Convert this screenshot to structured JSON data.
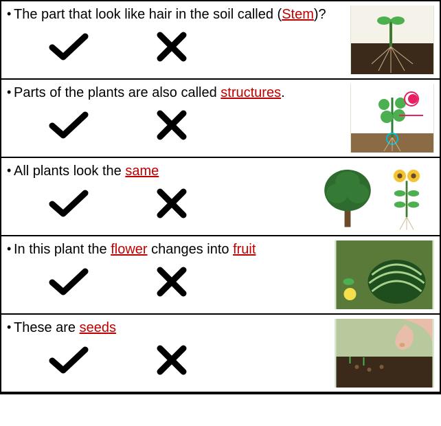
{
  "highlight_color": "#c00000",
  "text_color": "#000000",
  "mark_color": "#000000",
  "questions": [
    {
      "pre": "The part that look like hair in the soil called (",
      "keyword": "Stem",
      "post": ")?",
      "image": "seedling-soil"
    },
    {
      "pre": "Parts of the plants are also called ",
      "keyword": "structures",
      "post": ".",
      "image": "plant-parts"
    },
    {
      "pre": "All plants look the ",
      "keyword": "same",
      "post": "",
      "image": "tree-and-sunflower"
    },
    {
      "pre": "In this plant the ",
      "keyword": "flower",
      "mid": " changes into ",
      "keyword2": "fruit",
      "post": "",
      "image": "watermelon"
    },
    {
      "pre": "These are ",
      "keyword": "seeds",
      "post": "",
      "image": "hand-seeds"
    }
  ]
}
